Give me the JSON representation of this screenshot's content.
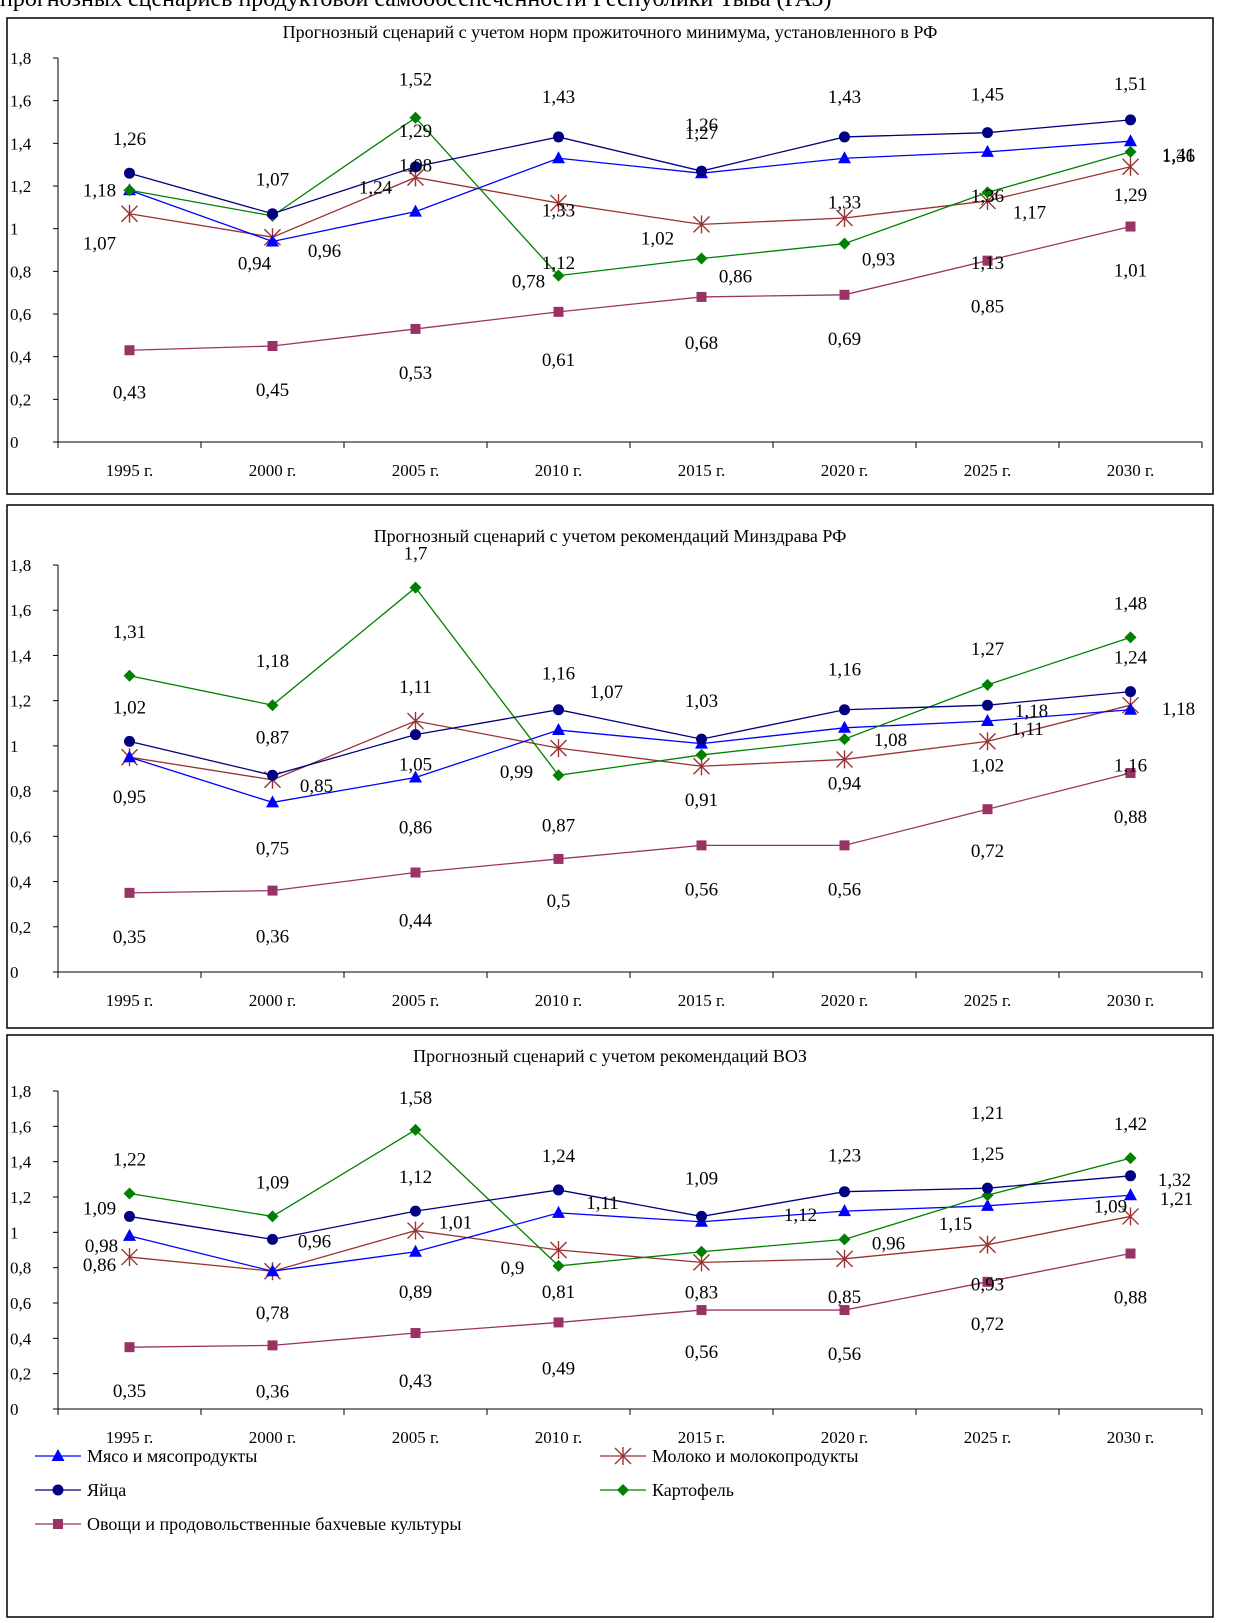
{
  "header": {
    "text": "прогнозных сценариев продуктовой самообеспеченности Республики Тыва (РАЗ)"
  },
  "colors": {
    "meat": "#0000FF",
    "milk": "#993333",
    "eggs": "#000080",
    "potato": "#008000",
    "veg": "#993366",
    "axis": "#000000",
    "frame": "#000000"
  },
  "chart_data": [
    {
      "type": "line",
      "title": "Прогнозный сценарий с учетом норм прожиточного минимума, установленного в РФ",
      "categories": [
        "1995 г.",
        "2000 г.",
        "2005 г.",
        "2010  г.",
        "2015 г.",
        "2020 г.",
        "2025 г.",
        "2030 г."
      ],
      "y_ticks": [
        "0",
        "0,2",
        "0,4",
        "0,6",
        "0,8",
        "1",
        "1,2",
        "1,4",
        "1,6",
        "1,8"
      ],
      "ylim": [
        0,
        1.8
      ],
      "series": [
        {
          "key": "meat",
          "name": "Мясо и мясопродукты",
          "values": [
            1.18,
            0.94,
            1.08,
            1.33,
            1.26,
            1.33,
            1.36,
            1.41
          ],
          "labels": [
            "1,18",
            "0,94",
            "1,08",
            "1,33",
            "1,26",
            "1,33",
            "1,36",
            "1,41"
          ]
        },
        {
          "key": "milk",
          "name": "Молоко и молокопродукты",
          "values": [
            1.07,
            0.96,
            1.24,
            1.12,
            1.02,
            1.05,
            1.13,
            1.29
          ],
          "labels": [
            "1,07",
            "0,96",
            "1,24",
            "1,12",
            "1,02",
            "",
            "1,13",
            "1,29"
          ]
        },
        {
          "key": "eggs",
          "name": "Яйца",
          "values": [
            1.26,
            1.07,
            1.29,
            1.43,
            1.27,
            1.43,
            1.45,
            1.51
          ],
          "labels": [
            "1,26",
            "1,07",
            "1,29",
            "1,43",
            "1,27",
            "1,43",
            "1,45",
            "1,51"
          ]
        },
        {
          "key": "potato",
          "name": "Картофель",
          "values": [
            1.18,
            1.06,
            1.52,
            0.78,
            0.86,
            0.93,
            1.17,
            1.36
          ],
          "labels": [
            "",
            "",
            "1,52",
            "0,78",
            "0,86",
            "0,93",
            "1,17",
            "1,36"
          ]
        },
        {
          "key": "veg",
          "name": "Овощи и продовольственные бахчевые культуры",
          "values": [
            0.43,
            0.45,
            0.53,
            0.61,
            0.68,
            0.69,
            0.85,
            1.01
          ],
          "labels": [
            "0,43",
            "0,45",
            "0,53",
            "0,61",
            "0,68",
            "0,69",
            "0,85",
            "1,01"
          ]
        }
      ]
    },
    {
      "type": "line",
      "title": "Прогнозный сценарий с учетом рекомендаций Минздрава РФ",
      "categories": [
        "1995 г.",
        "2000 г.",
        "2005 г.",
        "2010  г.",
        "2015 г.",
        "2020 г.",
        "2025 г.",
        "2030 г."
      ],
      "y_ticks": [
        "0",
        "0,2",
        "0,4",
        "0,6",
        "0,8",
        "1",
        "1,2",
        "1,4",
        "1,6",
        "1,8"
      ],
      "ylim": [
        0,
        1.8
      ],
      "series": [
        {
          "key": "meat",
          "name": "Мясо и мясопродукты",
          "values": [
            0.95,
            0.75,
            0.86,
            1.07,
            1.01,
            1.08,
            1.11,
            1.16
          ],
          "labels": [
            "",
            "0,75",
            "0,86",
            "1,07",
            "",
            "1,08",
            "1,11",
            "1,16"
          ]
        },
        {
          "key": "milk",
          "name": "Молоко и молокопродукты",
          "values": [
            0.95,
            0.85,
            1.11,
            0.99,
            0.91,
            0.94,
            1.02,
            1.18
          ],
          "labels": [
            "0,95",
            "0,85",
            "1,11",
            "0,99",
            "0,91",
            "0,94",
            "1,02",
            "1,18"
          ]
        },
        {
          "key": "eggs",
          "name": "Яйца",
          "values": [
            1.02,
            0.87,
            1.05,
            1.16,
            1.03,
            1.16,
            1.18,
            1.24
          ],
          "labels": [
            "1,02",
            "0,87",
            "1,05",
            "1,16",
            "1,03",
            "1,16",
            "1,18",
            "1,24"
          ]
        },
        {
          "key": "potato",
          "name": "Картофель",
          "values": [
            1.31,
            1.18,
            1.7,
            0.87,
            0.96,
            1.03,
            1.27,
            1.48
          ],
          "labels": [
            "1,31",
            "1,18",
            "1,7",
            "0,87",
            "",
            "",
            "1,27",
            "1,48"
          ]
        },
        {
          "key": "veg",
          "name": "Овощи и продовольственные бахчевые культуры",
          "values": [
            0.35,
            0.36,
            0.44,
            0.5,
            0.56,
            0.56,
            0.72,
            0.88
          ],
          "labels": [
            "0,35",
            "0,36",
            "0,44",
            "0,5",
            "0,56",
            "0,56",
            "0,72",
            "0,88"
          ]
        }
      ]
    },
    {
      "type": "line",
      "title": "Прогнозный сценарий с учетом рекомендаций ВОЗ",
      "categories": [
        "1995 г.",
        "2000 г.",
        "2005 г.",
        "2010  г.",
        "2015 г.",
        "2020 г.",
        "2025 г.",
        "2030 г."
      ],
      "y_ticks": [
        "0",
        "0,2",
        "0,4",
        "0,6",
        "0,8",
        "1",
        "1,2",
        "1,4",
        "1,6",
        "1,8"
      ],
      "ylim": [
        0,
        1.8
      ],
      "series": [
        {
          "key": "meat",
          "name": "Мясо и мясопродукты",
          "values": [
            0.98,
            0.78,
            0.89,
            1.11,
            1.06,
            1.12,
            1.15,
            1.21
          ],
          "labels": [
            "0,98",
            "",
            "0,89",
            "1,11",
            "",
            "1,12",
            "1,15",
            "1,21"
          ]
        },
        {
          "key": "milk",
          "name": "Молоко и молокопродукты",
          "values": [
            0.86,
            0.78,
            1.01,
            0.9,
            0.83,
            0.85,
            0.93,
            1.09
          ],
          "labels": [
            "0,86",
            "0,78",
            "1,01",
            "0,9",
            "0,83",
            "0,85",
            "0,93",
            "1,09"
          ]
        },
        {
          "key": "eggs",
          "name": "Яйца",
          "values": [
            1.09,
            0.96,
            1.12,
            1.24,
            1.09,
            1.23,
            1.25,
            1.32
          ],
          "labels": [
            "1,09",
            "0,96",
            "1,12",
            "1,24",
            "1,09",
            "1,23",
            "1,25",
            "1,32"
          ]
        },
        {
          "key": "potato",
          "name": "Картофель",
          "values": [
            1.22,
            1.09,
            1.58,
            0.81,
            0.89,
            0.96,
            1.21,
            1.42
          ],
          "labels": [
            "1,22",
            "1,09",
            "1,58",
            "0,81",
            "",
            "0,96",
            "1,21",
            "1,42"
          ]
        },
        {
          "key": "veg",
          "name": "Овощи и продовольственные бахчевые культуры",
          "values": [
            0.35,
            0.36,
            0.43,
            0.49,
            0.56,
            0.56,
            0.72,
            0.88
          ],
          "labels": [
            "0,35",
            "0,36",
            "0,43",
            "0,49",
            "0,56",
            "0,56",
            "0,72",
            "0,88"
          ]
        }
      ]
    }
  ],
  "legend": {
    "items": [
      {
        "key": "meat",
        "label": "Мясо и мясопродукты",
        "marker": "triangle"
      },
      {
        "key": "milk",
        "label": "Молоко и молокопродукты",
        "marker": "asterisk"
      },
      {
        "key": "eggs",
        "label": "Яйца",
        "marker": "circle"
      },
      {
        "key": "potato",
        "label": "Картофель",
        "marker": "diamond"
      },
      {
        "key": "veg",
        "label": "Овощи и продовольственные бахчевые культуры",
        "marker": "square"
      }
    ]
  }
}
